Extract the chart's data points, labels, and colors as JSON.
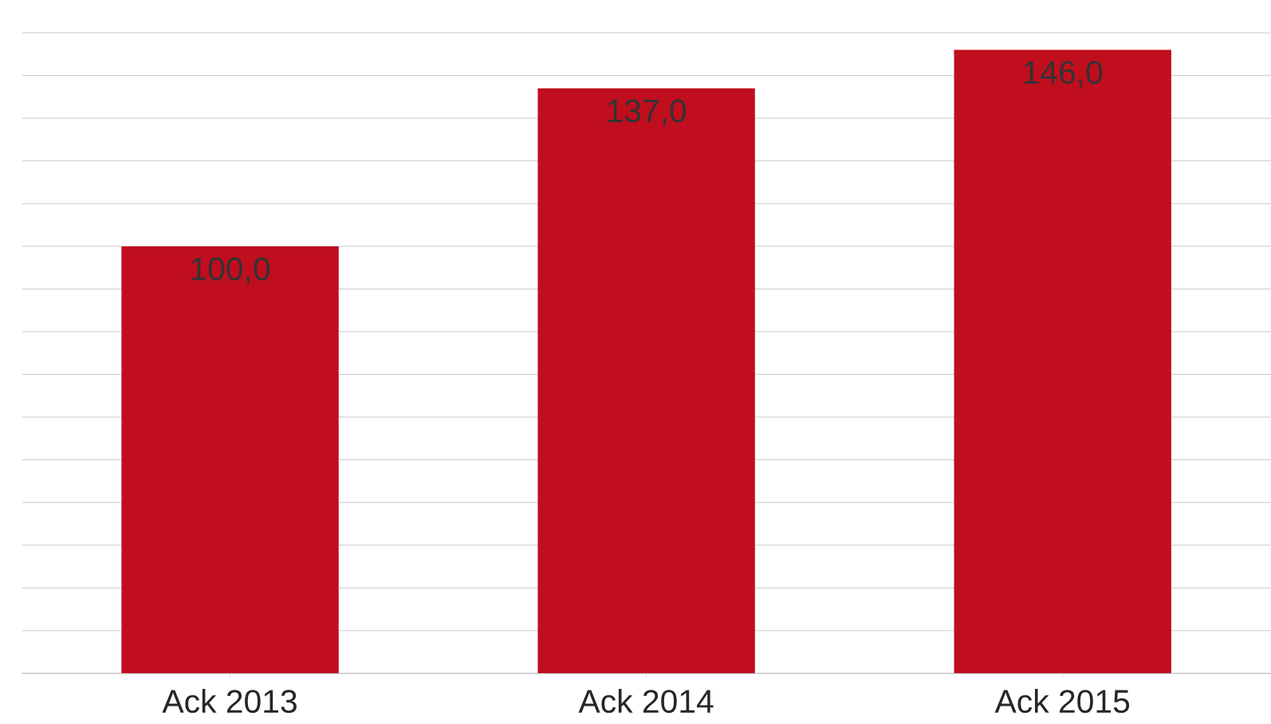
{
  "chart_data": {
    "type": "bar",
    "categories": [
      "Ack 2013",
      "Ack 2014",
      "Ack 2015"
    ],
    "values": [
      100,
      137,
      146
    ],
    "value_labels": [
      "100,0",
      "137,0",
      "146,0"
    ],
    "color": "#c00e1e",
    "grid": "y",
    "tick_labels": "x"
  }
}
